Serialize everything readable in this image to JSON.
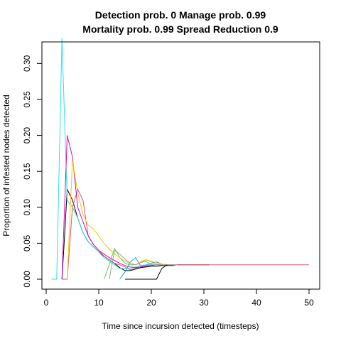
{
  "chart_data": {
    "type": "line",
    "title_line1": "Detection prob. 0 Manage prob. 0.99",
    "title_line2": "Mortality prob. 0.99 Spread Reduction 0.9",
    "xlabel": "Time since incursion detected (timesteps)",
    "ylabel": "Proportion of infested nodes detected",
    "xlim": [
      0,
      50
    ],
    "ylim": [
      0,
      0.33
    ],
    "x_ticks": [
      "0",
      "10",
      "20",
      "30",
      "40",
      "50"
    ],
    "y_ticks": [
      "0.00",
      "0.05",
      "0.10",
      "0.15",
      "0.20",
      "0.25",
      "0.30"
    ],
    "grid": false,
    "legend": "none",
    "series": [
      {
        "color": "#000000",
        "x": [
          3,
          3.5,
          4,
          5,
          6,
          7,
          8,
          9,
          10,
          11,
          12,
          13,
          14,
          15,
          16,
          17,
          18,
          19,
          20,
          21,
          22,
          23,
          24,
          25,
          30,
          31
        ],
        "y": [
          0,
          0.06,
          0.125,
          0.11,
          0.085,
          0.065,
          0.052,
          0.045,
          0.038,
          0.032,
          0.027,
          0.022,
          0.016,
          0.012,
          0.012,
          0.014,
          0.016,
          0.017,
          0.018,
          0.018,
          0.019,
          0.019,
          0.019,
          0.02,
          0.02,
          0.02
        ]
      },
      {
        "color": "#DF536B",
        "x": [
          3,
          4,
          5,
          6,
          7,
          8,
          9,
          10,
          11,
          12,
          13,
          14,
          15,
          16,
          17,
          18,
          19,
          20,
          21,
          22,
          23,
          24,
          25,
          50
        ],
        "y": [
          0,
          0,
          0.1,
          0.125,
          0.11,
          0.06,
          0.048,
          0.04,
          0.032,
          0.027,
          0.022,
          0.02,
          0.017,
          0.013,
          0.015,
          0.017,
          0.019,
          0.019,
          0.02,
          0.02,
          0.02,
          0.02,
          0.02,
          0.02
        ]
      },
      {
        "color": "#61D04F",
        "x": [
          11,
          12,
          13,
          14,
          15,
          16,
          17,
          18,
          19,
          20,
          21,
          22,
          23,
          24,
          25
        ],
        "y": [
          0,
          0.02,
          0.043,
          0.03,
          0.022,
          0.02,
          0.02,
          0.023,
          0.027,
          0.024,
          0.021,
          0.02,
          0.02,
          0.02,
          0.02
        ]
      },
      {
        "color": "#2297E6",
        "x": [
          14,
          15,
          16,
          17,
          18,
          19,
          20,
          21,
          22,
          23,
          24,
          25
        ],
        "y": [
          0,
          0.01,
          0.024,
          0.03,
          0.018,
          0.02,
          0.022,
          0.024,
          0.021,
          0.02,
          0.02,
          0.02
        ]
      },
      {
        "color": "#28E2E5",
        "x": [
          1,
          2,
          3,
          4,
          5,
          6,
          7,
          8,
          9,
          10,
          11,
          12,
          13,
          14,
          15,
          16,
          17,
          18,
          19,
          20,
          21,
          22,
          23,
          24,
          25
        ],
        "y": [
          0,
          0,
          0.335,
          0.11,
          0.1,
          0.085,
          0.065,
          0.052,
          0.045,
          0.038,
          0.03,
          0.025,
          0.02,
          0.015,
          0.015,
          0.015,
          0.017,
          0.019,
          0.02,
          0.02,
          0.02,
          0.02,
          0.02,
          0.02,
          0.02
        ]
      },
      {
        "color": "#CD0BBC",
        "x": [
          3,
          3.5,
          4,
          5,
          6,
          7,
          8,
          9,
          10,
          11,
          12,
          13,
          14,
          15,
          16,
          17,
          18,
          19,
          20,
          21,
          22,
          23,
          24,
          25
        ],
        "y": [
          0,
          0.1,
          0.2,
          0.17,
          0.1,
          0.08,
          0.06,
          0.048,
          0.04,
          0.035,
          0.03,
          0.026,
          0.022,
          0.019,
          0.017,
          0.016,
          0.017,
          0.018,
          0.019,
          0.02,
          0.02,
          0.02,
          0.02,
          0.02
        ]
      },
      {
        "color": "#F5C710",
        "x": [
          4,
          5,
          6,
          7,
          8,
          9,
          10,
          11,
          12,
          13,
          14,
          15,
          16,
          17,
          18,
          19,
          20,
          21,
          22,
          23,
          24,
          25
        ],
        "y": [
          0,
          0.165,
          0.12,
          0.09,
          0.075,
          0.07,
          0.06,
          0.05,
          0.042,
          0.035,
          0.03,
          0.025,
          0.022,
          0.02,
          0.025,
          0.027,
          0.025,
          0.023,
          0.021,
          0.02,
          0.02,
          0.02
        ]
      },
      {
        "color": "#9E9E9E",
        "x": [
          12,
          13,
          14,
          15,
          16,
          17,
          18,
          19,
          20,
          21,
          22,
          23,
          24,
          25
        ],
        "y": [
          0,
          0.04,
          0.035,
          0.028,
          0.022,
          0.02,
          0.023,
          0.025,
          0.02,
          0.02,
          0.02,
          0.02,
          0.02,
          0.02
        ]
      },
      {
        "color": "#000000",
        "x": [
          15,
          16,
          17,
          18,
          19,
          20,
          21,
          22,
          23
        ],
        "y": [
          0,
          0,
          0,
          0,
          0,
          0,
          0,
          0.015,
          0.02
        ]
      }
    ]
  }
}
